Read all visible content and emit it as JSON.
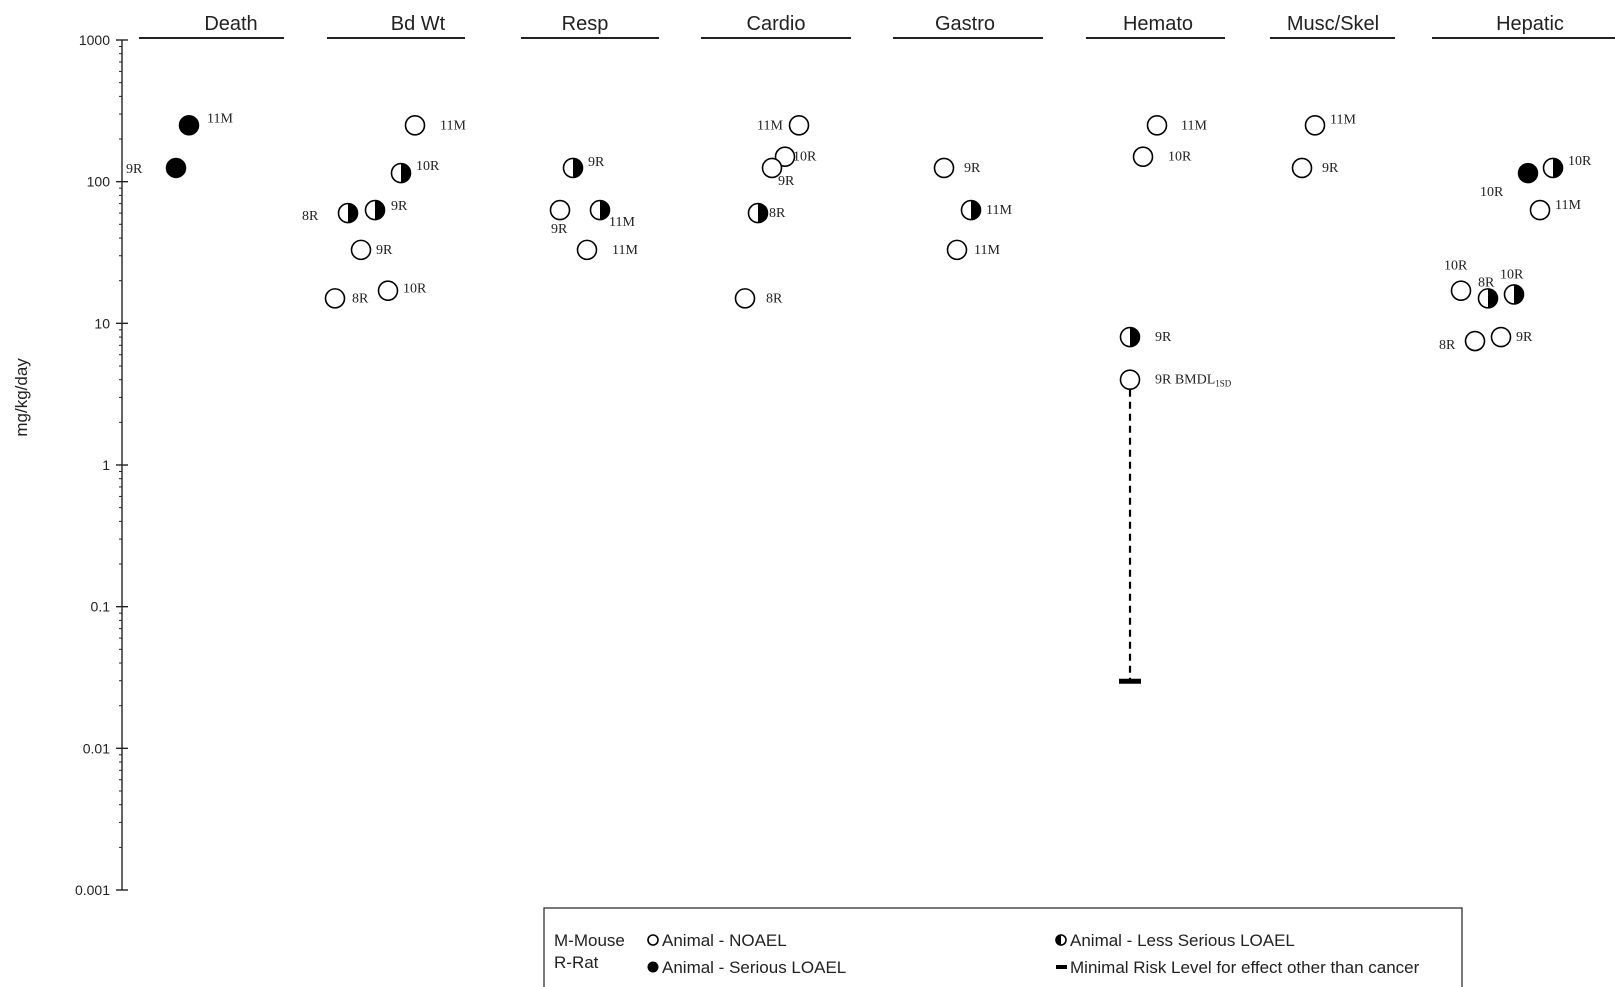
{
  "chart_data": {
    "type": "scatter",
    "ylabel": "mg/kg/day",
    "yscale": "log",
    "ylim": [
      0.001,
      1000
    ],
    "yticks": [
      "1000",
      "100",
      "10",
      "1",
      "0.1",
      "0.01",
      "0.001"
    ],
    "categories": [
      "Death",
      "Bd Wt",
      "Resp",
      "Cardio",
      "Gastro",
      "Hemato",
      "Musc/Skel",
      "Hepatic"
    ],
    "points": [
      {
        "category": "Death",
        "value": 250,
        "effect": "serious",
        "label": "11M"
      },
      {
        "category": "Death",
        "value": 125,
        "effect": "serious",
        "label": "9R"
      },
      {
        "category": "Bd Wt",
        "value": 250,
        "effect": "noael",
        "label": "11M"
      },
      {
        "category": "Bd Wt",
        "value": 115,
        "effect": "less_serious",
        "label": "10R"
      },
      {
        "category": "Bd Wt",
        "value": 60,
        "effect": "less_serious",
        "label": "8R"
      },
      {
        "category": "Bd Wt",
        "value": 63,
        "effect": "less_serious",
        "label": "9R"
      },
      {
        "category": "Bd Wt",
        "value": 33,
        "effect": "noael",
        "label": "9R"
      },
      {
        "category": "Bd Wt",
        "value": 15,
        "effect": "noael",
        "label": "8R"
      },
      {
        "category": "Bd Wt",
        "value": 17,
        "effect": "noael",
        "label": "10R"
      },
      {
        "category": "Resp",
        "value": 125,
        "effect": "less_serious",
        "label": "9R"
      },
      {
        "category": "Resp",
        "value": 63,
        "effect": "noael",
        "label": "9R"
      },
      {
        "category": "Resp",
        "value": 63,
        "effect": "less_serious",
        "label": "11M"
      },
      {
        "category": "Resp",
        "value": 33,
        "effect": "noael",
        "label": "11M"
      },
      {
        "category": "Cardio",
        "value": 250,
        "effect": "noael",
        "label": "11M"
      },
      {
        "category": "Cardio",
        "value": 150,
        "effect": "noael",
        "label": "10R"
      },
      {
        "category": "Cardio",
        "value": 125,
        "effect": "noael",
        "label": "9R"
      },
      {
        "category": "Cardio",
        "value": 60,
        "effect": "less_serious",
        "label": "8R"
      },
      {
        "category": "Cardio",
        "value": 15,
        "effect": "noael",
        "label": "8R"
      },
      {
        "category": "Gastro",
        "value": 125,
        "effect": "noael",
        "label": "9R"
      },
      {
        "category": "Gastro",
        "value": 63,
        "effect": "less_serious",
        "label": "11M"
      },
      {
        "category": "Gastro",
        "value": 33,
        "effect": "noael",
        "label": "11M"
      },
      {
        "category": "Hemato",
        "value": 250,
        "effect": "noael",
        "label": "11M"
      },
      {
        "category": "Hemato",
        "value": 150,
        "effect": "noael",
        "label": "10R"
      },
      {
        "category": "Hemato",
        "value": 8,
        "effect": "less_serious",
        "label": "9R"
      },
      {
        "category": "Hemato",
        "value": 4,
        "effect": "noael",
        "label": "9R BMDL",
        "label_sub": "1SD"
      },
      {
        "category": "Musc/Skel",
        "value": 250,
        "effect": "noael",
        "label": "11M"
      },
      {
        "category": "Musc/Skel",
        "value": 125,
        "effect": "noael",
        "label": "9R"
      },
      {
        "category": "Hepatic",
        "value": 115,
        "effect": "serious",
        "label": "10R"
      },
      {
        "category": "Hepatic",
        "value": 125,
        "effect": "less_serious",
        "label": "10R"
      },
      {
        "category": "Hepatic",
        "value": 63,
        "effect": "noael",
        "label": "11M"
      },
      {
        "category": "Hepatic",
        "value": 17,
        "effect": "noael",
        "label": "10R"
      },
      {
        "category": "Hepatic",
        "value": 15,
        "effect": "less_serious",
        "label": "8R"
      },
      {
        "category": "Hepatic",
        "value": 16,
        "effect": "less_serious",
        "label": "10R"
      },
      {
        "category": "Hepatic",
        "value": 7.5,
        "effect": "noael",
        "label": "8R"
      },
      {
        "category": "Hepatic",
        "value": 8,
        "effect": "noael",
        "label": "9R"
      }
    ],
    "mrl": {
      "category": "Hemato",
      "value": 0.03,
      "from_value": 4
    },
    "legend": {
      "species": [
        "M-Mouse",
        "R-Rat"
      ],
      "items": [
        {
          "key": "noael",
          "label": "Animal - NOAEL"
        },
        {
          "key": "less_serious",
          "label": "Animal - Less Serious LOAEL"
        },
        {
          "key": "serious",
          "label": "Animal - Serious LOAEL"
        },
        {
          "key": "mrl",
          "label": "Minimal Risk Level for effect other than cancer"
        }
      ],
      "placement": "bottom"
    }
  }
}
